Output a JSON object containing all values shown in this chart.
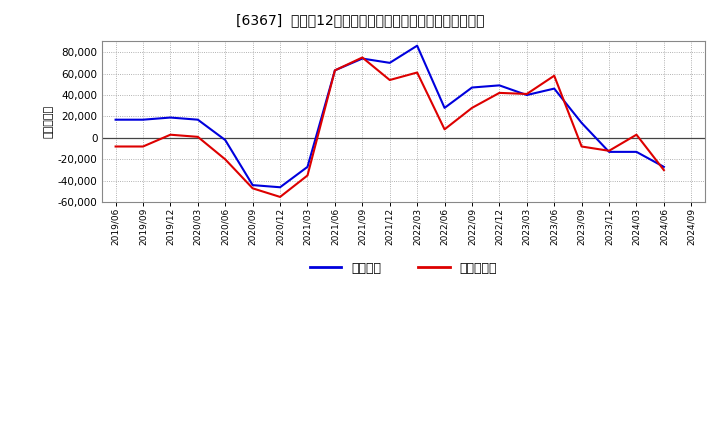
{
  "title": "[6367]  利益だ12か月移動合計の対前年同期増減額の推移",
  "ylabel": "（百万円）",
  "background_color": "#ffffff",
  "plot_bg_color": "#ffffff",
  "grid_color": "#999999",
  "line_color_keijo": "#0000dd",
  "line_color_touki": "#dd0000",
  "legend_label_keijo": "経常利益",
  "legend_label_touki": "当期純利益",
  "ylim": [
    -60000,
    90000
  ],
  "yticks": [
    -60000,
    -40000,
    -20000,
    0,
    20000,
    40000,
    60000,
    80000
  ],
  "x_labels": [
    "2019/06",
    "2019/09",
    "2019/12",
    "2020/03",
    "2020/06",
    "2020/09",
    "2020/12",
    "2021/03",
    "2021/06",
    "2021/09",
    "2021/12",
    "2022/03",
    "2022/06",
    "2022/09",
    "2022/12",
    "2023/03",
    "2023/06",
    "2023/09",
    "2023/12",
    "2024/03",
    "2024/06",
    "2024/09"
  ],
  "keijo": [
    17000,
    17000,
    19000,
    17000,
    -2000,
    -44000,
    -46000,
    -27000,
    63000,
    74000,
    70000,
    86000,
    28000,
    47000,
    49000,
    40000,
    46000,
    14000,
    -13000,
    -13000,
    -27000,
    null
  ],
  "touki": [
    -8000,
    -8000,
    3000,
    1000,
    -20000,
    -47000,
    -55000,
    -35000,
    63000,
    75000,
    54000,
    61000,
    8000,
    28000,
    42000,
    41000,
    58000,
    -8000,
    -12000,
    3000,
    -30000,
    null
  ]
}
